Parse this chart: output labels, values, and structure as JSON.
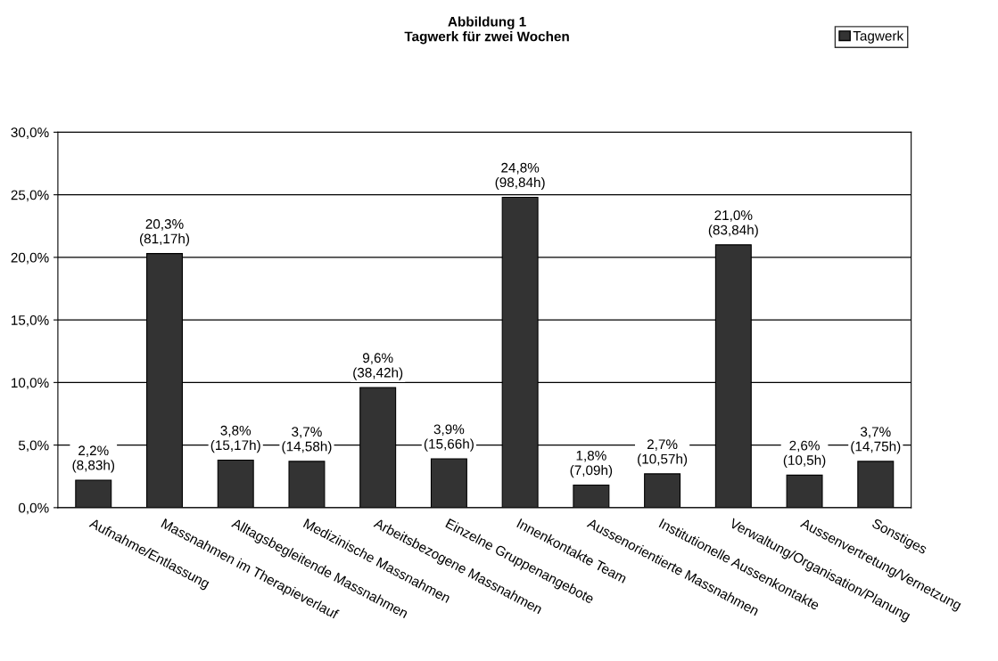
{
  "chart_data": {
    "type": "bar",
    "title": "Abbildung 1\nTagwerk für zwei Wochen",
    "categories": [
      "Aufnahme/Entlassung",
      "Massnahmen im Therapieverlauf",
      "Alltagsbegleitende Massnahmen",
      "Medizinische Massnahmen",
      "Arbeitsbezogene Massnahmen",
      "Einzelne Gruppenangebote",
      "Innenkontakte Team",
      "Aussenorientierte Massnahmen",
      "Institutionelle Aussenkontakte",
      "Verwaltung/Organisation/Planung",
      "Aussenvertretung/Vernetzung",
      "Sonstiges"
    ],
    "series": [
      {
        "name": "Tagwerk",
        "color": "#333333",
        "values": [
          2.2,
          20.3,
          3.8,
          3.7,
          9.6,
          3.9,
          24.8,
          1.8,
          2.7,
          21.0,
          2.6,
          3.7
        ],
        "value_labels": [
          "2,2%\n(8,83h)",
          "20,3%\n(81,17h)",
          "3,8%\n(15,17h)",
          "3,7%\n(14,58h)",
          "9,6%\n(38,42h)",
          "3,9%\n(15,66h)",
          "24,8%\n(98,84h)",
          "1,8%\n(7,09h)",
          "2,7%\n(10,57h)",
          "21,0%\n(83,84h)",
          "2,6%\n(10,5h)",
          "3,7%\n(14,75h)"
        ]
      }
    ],
    "ylim": [
      0,
      30
    ],
    "yticks": [
      {
        "value": 0,
        "label": "0,0%"
      },
      {
        "value": 5,
        "label": "5,0%"
      },
      {
        "value": 10,
        "label": "10,0%"
      },
      {
        "value": 15,
        "label": "15,0%"
      },
      {
        "value": 20,
        "label": "20,0%"
      },
      {
        "value": 25,
        "label": "25,0%"
      },
      {
        "value": 30,
        "label": "30,0%"
      }
    ],
    "grid": "y",
    "legend": "top right"
  }
}
